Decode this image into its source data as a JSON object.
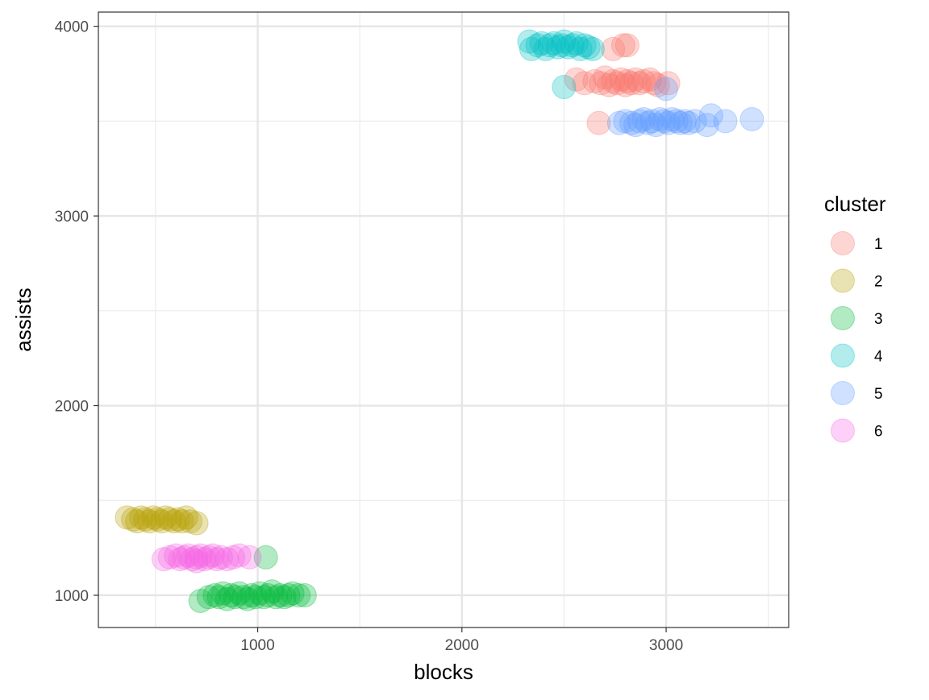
{
  "chart_data": {
    "type": "scatter",
    "xlabel": "blocks",
    "ylabel": "assists",
    "xlim": [
      220,
      3600
    ],
    "ylim": [
      830,
      4075
    ],
    "x_major_ticks": [
      1000,
      2000,
      3000
    ],
    "x_tick_labels": [
      "1000",
      "2000",
      "3000"
    ],
    "x_minor_ticks": [
      500,
      1500,
      2500,
      3500
    ],
    "y_major_ticks": [
      1000,
      2000,
      3000,
      4000
    ],
    "y_tick_labels": [
      "1000",
      "2000",
      "3000",
      "4000"
    ],
    "y_minor_ticks": [
      1500,
      2500,
      3500
    ],
    "grid": true,
    "theme": "bw",
    "point_alpha": 0.3,
    "legend": {
      "title": "cluster",
      "position": "right",
      "entries": [
        {
          "label": "1",
          "color": "#F8766D"
        },
        {
          "label": "2",
          "color": "#B79F00"
        },
        {
          "label": "3",
          "color": "#00BA38"
        },
        {
          "label": "4",
          "color": "#00BFC4"
        },
        {
          "label": "5",
          "color": "#619CFF"
        },
        {
          "label": "6",
          "color": "#F564E3"
        }
      ]
    },
    "series": [
      {
        "name": "1",
        "color": "#F8766D",
        "points": [
          [
            2670,
            3490
          ],
          [
            2560,
            3720
          ],
          [
            2600,
            3700
          ],
          [
            2650,
            3710
          ],
          [
            2680,
            3700
          ],
          [
            2700,
            3730
          ],
          [
            2720,
            3690
          ],
          [
            2740,
            3710
          ],
          [
            2760,
            3700
          ],
          [
            2780,
            3720
          ],
          [
            2800,
            3690
          ],
          [
            2810,
            3710
          ],
          [
            2830,
            3700
          ],
          [
            2850,
            3720
          ],
          [
            2870,
            3700
          ],
          [
            2890,
            3710
          ],
          [
            2920,
            3720
          ],
          [
            2940,
            3700
          ],
          [
            2960,
            3690
          ],
          [
            3010,
            3700
          ],
          [
            2740,
            3880
          ],
          [
            2790,
            3900
          ],
          [
            2810,
            3900
          ]
        ]
      },
      {
        "name": "2",
        "color": "#B79F00",
        "points": [
          [
            360,
            1410
          ],
          [
            390,
            1400
          ],
          [
            410,
            1390
          ],
          [
            430,
            1410
          ],
          [
            450,
            1400
          ],
          [
            470,
            1390
          ],
          [
            490,
            1410
          ],
          [
            510,
            1400
          ],
          [
            530,
            1390
          ],
          [
            550,
            1410
          ],
          [
            570,
            1400
          ],
          [
            590,
            1390
          ],
          [
            610,
            1400
          ],
          [
            630,
            1390
          ],
          [
            650,
            1410
          ],
          [
            670,
            1390
          ],
          [
            700,
            1380
          ]
        ]
      },
      {
        "name": "3",
        "color": "#00BA38",
        "points": [
          [
            720,
            970
          ],
          [
            760,
            990
          ],
          [
            790,
            1000
          ],
          [
            810,
            990
          ],
          [
            830,
            1010
          ],
          [
            850,
            980
          ],
          [
            870,
            1000
          ],
          [
            890,
            990
          ],
          [
            910,
            1010
          ],
          [
            930,
            990
          ],
          [
            950,
            980
          ],
          [
            970,
            1000
          ],
          [
            990,
            990
          ],
          [
            1010,
            1010
          ],
          [
            1030,
            990
          ],
          [
            1050,
            1000
          ],
          [
            1070,
            1020
          ],
          [
            1090,
            990
          ],
          [
            1110,
            1000
          ],
          [
            1130,
            990
          ],
          [
            1150,
            1000
          ],
          [
            1170,
            1010
          ],
          [
            1200,
            1000
          ],
          [
            1230,
            1000
          ],
          [
            1040,
            1200
          ]
        ]
      },
      {
        "name": "4",
        "color": "#00BFC4",
        "points": [
          [
            2330,
            3920
          ],
          [
            2340,
            3880
          ],
          [
            2370,
            3900
          ],
          [
            2390,
            3910
          ],
          [
            2410,
            3880
          ],
          [
            2430,
            3900
          ],
          [
            2450,
            3910
          ],
          [
            2470,
            3890
          ],
          [
            2490,
            3900
          ],
          [
            2500,
            3920
          ],
          [
            2520,
            3890
          ],
          [
            2540,
            3900
          ],
          [
            2560,
            3910
          ],
          [
            2580,
            3880
          ],
          [
            2600,
            3900
          ],
          [
            2620,
            3890
          ],
          [
            2640,
            3880
          ],
          [
            2500,
            3680
          ]
        ]
      },
      {
        "name": "5",
        "color": "#619CFF",
        "points": [
          [
            2770,
            3490
          ],
          [
            2800,
            3500
          ],
          [
            2830,
            3490
          ],
          [
            2850,
            3480
          ],
          [
            2870,
            3500
          ],
          [
            2890,
            3510
          ],
          [
            2910,
            3490
          ],
          [
            2930,
            3500
          ],
          [
            2950,
            3480
          ],
          [
            2970,
            3510
          ],
          [
            2990,
            3500
          ],
          [
            3010,
            3490
          ],
          [
            3030,
            3510
          ],
          [
            3050,
            3500
          ],
          [
            3070,
            3490
          ],
          [
            3090,
            3500
          ],
          [
            3110,
            3490
          ],
          [
            3140,
            3500
          ],
          [
            3200,
            3480
          ],
          [
            3220,
            3530
          ],
          [
            3290,
            3500
          ],
          [
            3420,
            3510
          ],
          [
            3000,
            3670
          ]
        ]
      },
      {
        "name": "6",
        "color": "#F564E3",
        "points": [
          [
            540,
            1190
          ],
          [
            570,
            1200
          ],
          [
            600,
            1210
          ],
          [
            620,
            1190
          ],
          [
            640,
            1200
          ],
          [
            660,
            1210
          ],
          [
            680,
            1190
          ],
          [
            700,
            1200
          ],
          [
            720,
            1210
          ],
          [
            740,
            1190
          ],
          [
            760,
            1200
          ],
          [
            780,
            1210
          ],
          [
            800,
            1190
          ],
          [
            820,
            1200
          ],
          [
            850,
            1190
          ],
          [
            880,
            1200
          ],
          [
            910,
            1210
          ],
          [
            960,
            1200
          ],
          [
            700,
            1180
          ]
        ]
      }
    ]
  }
}
